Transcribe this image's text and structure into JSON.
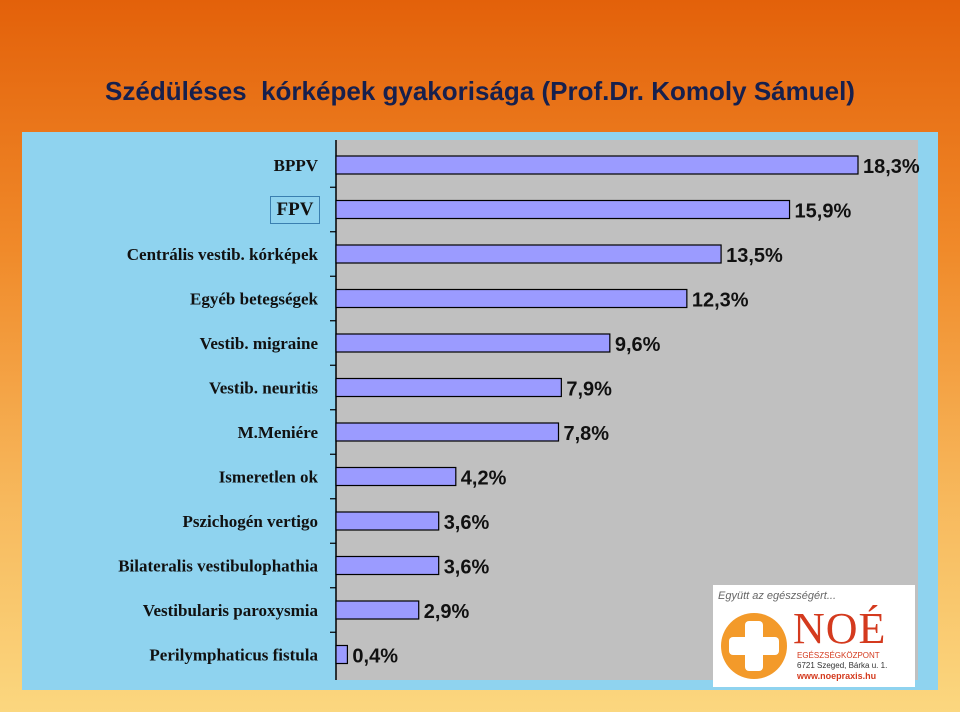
{
  "page": {
    "title": "Szédüléses  kórképek gyakorisága (Prof.Dr. Komoly Sámuel)"
  },
  "overlay_label": "FPV",
  "logo": {
    "tagline": "Együtt az egészségért...",
    "name": "NOÉ",
    "subtitle": "EGÉSZSÉGKÖZPONT",
    "address": "6721 Szeged, Bárka u. 1.",
    "website": "www.noepraxis.hu"
  },
  "colors": {
    "bar_fill": "#9b9bff",
    "plot_bg": "#c0c0c0",
    "panel_bg": "#8fd3ef",
    "title": "#17204d"
  },
  "chart_data": {
    "type": "bar",
    "orientation": "horizontal",
    "categories": [
      "BPPV",
      "FPV",
      "Centrális vestib. kórképek",
      "Egyéb betegségek",
      "Vestib. migraine",
      "Vestib. neuritis",
      "M.Meniére",
      "Ismeretlen ok",
      "Pszichogén vertigo",
      "Bilateralis vestibulophathia",
      "Vestibularis paroxysmia",
      "Perilymphaticus fistula"
    ],
    "values": [
      18.3,
      15.9,
      13.5,
      12.3,
      9.6,
      7.9,
      7.8,
      4.2,
      3.6,
      3.6,
      2.9,
      0.4
    ],
    "value_labels": [
      "18,3%",
      "15,9%",
      "13,5%",
      "12,3%",
      "9,6%",
      "7,9%",
      "7,8%",
      "4,2%",
      "3,6%",
      "3,6%",
      "2,9%",
      "0,4%"
    ],
    "xlim": [
      0,
      20
    ],
    "grid": false,
    "legend": "none"
  }
}
